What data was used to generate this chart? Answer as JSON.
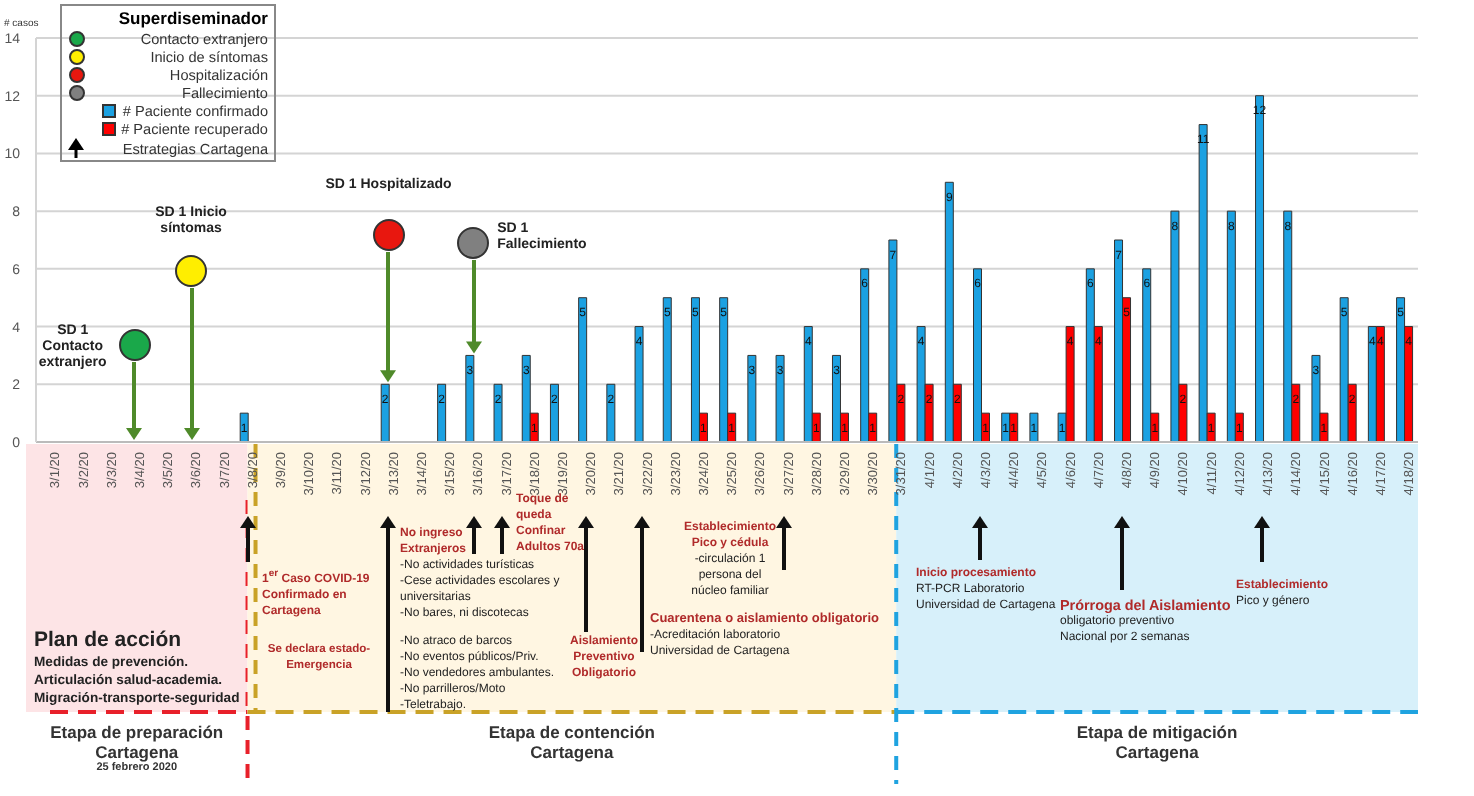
{
  "chart_data": {
    "type": "bar",
    "ylabel": "# casos",
    "legend_title": "Superdiseminador",
    "legend": "top left",
    "grid": "y",
    "data_labels": true,
    "ylim": [
      0,
      14
    ],
    "yticks": [
      0,
      2,
      4,
      6,
      8,
      10,
      12,
      14
    ],
    "categories": [
      "3/1/20",
      "3/2/20",
      "3/3/20",
      "3/4/20",
      "3/5/20",
      "3/6/20",
      "3/7/20",
      "3/8/20",
      "3/9/20",
      "3/10/20",
      "3/11/20",
      "3/12/20",
      "3/13/20",
      "3/14/20",
      "3/15/20",
      "3/16/20",
      "3/17/20",
      "3/18/20",
      "3/19/20",
      "3/20/20",
      "3/21/20",
      "3/22/20",
      "3/23/20",
      "3/24/20",
      "3/25/20",
      "3/26/20",
      "3/27/20",
      "3/28/20",
      "3/29/20",
      "3/30/20",
      "3/31/20",
      "4/1/20",
      "4/2/20",
      "4/3/20",
      "4/4/20",
      "4/5/20",
      "4/6/20",
      "4/7/20",
      "4/8/20",
      "4/9/20",
      "4/10/20",
      "4/11/20",
      "4/12/20",
      "4/13/20",
      "4/14/20",
      "4/15/20",
      "4/16/20",
      "4/17/20",
      "4/18/20"
    ],
    "series": [
      {
        "name": "# Paciente confirmado",
        "color": "#1ba1e2",
        "values": [
          null,
          null,
          null,
          null,
          null,
          null,
          null,
          1,
          null,
          null,
          null,
          null,
          2,
          null,
          2,
          3,
          2,
          3,
          2,
          5,
          2,
          4,
          5,
          5,
          5,
          3,
          3,
          4,
          3,
          6,
          7,
          4,
          9,
          6,
          1,
          1,
          1,
          6,
          7,
          6,
          8,
          11,
          8,
          12,
          8,
          3,
          5,
          4,
          5
        ]
      },
      {
        "name": "# Paciente recuperado",
        "color": "#ff0000",
        "values": [
          null,
          null,
          null,
          null,
          null,
          null,
          null,
          null,
          null,
          null,
          null,
          null,
          null,
          null,
          null,
          null,
          null,
          1,
          null,
          null,
          null,
          null,
          null,
          1,
          1,
          null,
          null,
          1,
          1,
          1,
          2,
          2,
          2,
          1,
          1,
          null,
          4,
          4,
          5,
          1,
          2,
          1,
          1,
          null,
          2,
          1,
          2,
          4,
          4
        ]
      }
    ],
    "annotations": [
      "Contacto extranjero",
      "Inicio de síntomas",
      "Hospitalización",
      "Fallecimiento",
      "Estrategias Cartagena",
      "SD 1 Contacto extranjero",
      "SD 1 Inicio síntomas",
      "SD 1 Hospitalizado",
      "SD 1 Fallecimiento",
      "1$^{er}$ Caso COVID-19 Confirmado en Cartagena",
      "Se declara estado-Emergencia",
      "No ingreso Extranjeros",
      "-No actividades turísticas",
      "-Cese actividades escolares y universitarias",
      "-No bares, ni discotecas",
      "-No atraco de barcos",
      "-No eventos públicos/Priv.",
      "-No vendedores ambulantes.",
      "-No parrilleros/Moto",
      "-Teletrabajo.",
      "Toque de queda Confinar Adultos 70a",
      "Aislamiento Preventivo Obligatorio",
      "Cuarentena o aislamiento obligatorio",
      "-Acreditación laboratorio",
      "Universidad de Cartagena",
      "Establecimiento Pico y cédula",
      "-circulación 1 persona del núcleo familiar",
      "Inicio procesamiento",
      "RT-PCR Laboratorio",
      "Universidad de Cartagena",
      "Prórroga del Aislamiento",
      "obligatorio preventivo",
      "Nacional por 2 semanas",
      "Establecimiento",
      "Pico y género",
      "Plan de acción",
      "Medidas de prevención.",
      "Articulación salud-academia.",
      "Migración-transporte-seguridad",
      "25 febrero 2020",
      "Etapa de preparación Cartagena",
      "Etapa de contención Cartagena",
      "Etapa de mitigación Cartagena"
    ]
  }
}
